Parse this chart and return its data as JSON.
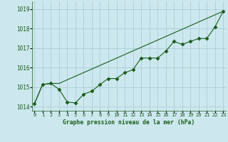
{
  "curve_x": [
    0,
    1,
    2,
    3,
    4,
    5,
    6,
    7,
    8,
    9,
    10,
    11,
    12,
    13,
    14,
    15,
    16,
    17,
    18,
    19,
    20,
    21,
    22,
    23
  ],
  "curve_y": [
    1014.15,
    1015.15,
    1015.2,
    1014.9,
    1014.25,
    1014.2,
    1014.65,
    1014.8,
    1015.15,
    1015.45,
    1015.45,
    1015.75,
    1015.9,
    1016.5,
    1016.5,
    1016.5,
    1016.85,
    1017.35,
    1017.2,
    1017.35,
    1017.5,
    1017.5,
    1018.1,
    1018.9
  ],
  "trend_x": [
    0,
    1,
    2,
    3,
    23
  ],
  "trend_y": [
    1014.15,
    1015.15,
    1015.2,
    1015.2,
    1018.9
  ],
  "bg_color": "#cce8ee",
  "grid_color": "#aacdd5",
  "line_color": "#1a5c1a",
  "xlabel": "Graphe pression niveau de la mer (hPa)",
  "xticks": [
    0,
    1,
    2,
    3,
    4,
    5,
    6,
    7,
    8,
    9,
    10,
    11,
    12,
    13,
    14,
    15,
    16,
    17,
    18,
    19,
    20,
    21,
    22,
    23
  ],
  "yticks": [
    1014,
    1015,
    1016,
    1017,
    1018,
    1019
  ],
  "ylim": [
    1013.8,
    1019.4
  ],
  "xlim": [
    -0.3,
    23.3
  ]
}
